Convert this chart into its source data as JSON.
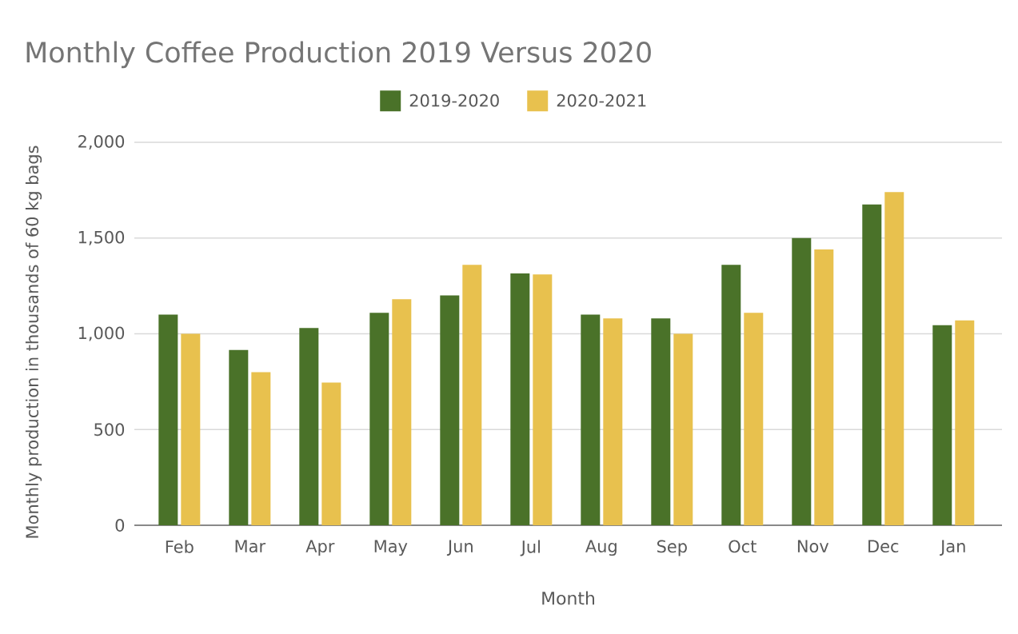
{
  "chart_data": {
    "type": "bar",
    "title": "Monthly Coffee Production 2019 Versus 2020",
    "xlabel": "Month",
    "ylabel": "Monthly production in thousands of 60 kg bags",
    "categories": [
      "Feb",
      "Mar",
      "Apr",
      "May",
      "Jun",
      "Jul",
      "Aug",
      "Sep",
      "Oct",
      "Nov",
      "Dec",
      "Jan"
    ],
    "series": [
      {
        "name": "2019-2020",
        "color": "#4a7229",
        "values": [
          1100,
          915,
          1030,
          1110,
          1200,
          1315,
          1100,
          1080,
          1360,
          1500,
          1675,
          1045
        ]
      },
      {
        "name": "2020-2021",
        "color": "#e8c14e",
        "values": [
          1000,
          800,
          745,
          1180,
          1360,
          1310,
          1080,
          1000,
          1110,
          1440,
          1740,
          1070
        ]
      }
    ],
    "ylim": [
      0,
      2000
    ],
    "yticks": [
      0,
      500,
      {
        "value": 1000,
        "label": "1,000"
      },
      {
        "value": 1500,
        "label": "1,500"
      },
      {
        "value": 2000,
        "label": "2,000"
      }
    ],
    "grid": "y",
    "legend": "top"
  }
}
